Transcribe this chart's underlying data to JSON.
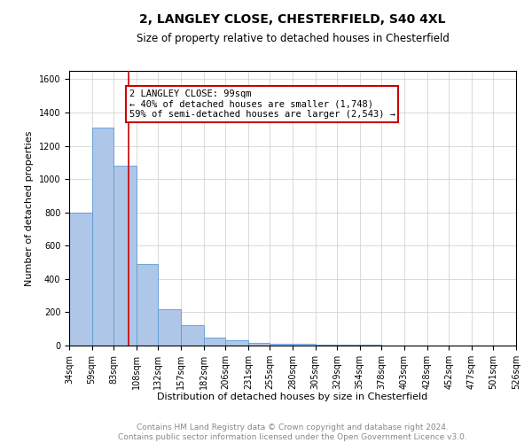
{
  "title": "2, LANGLEY CLOSE, CHESTERFIELD, S40 4XL",
  "subtitle": "Size of property relative to detached houses in Chesterfield",
  "xlabel": "Distribution of detached houses by size in Chesterfield",
  "ylabel": "Number of detached properties",
  "footer_line1": "Contains HM Land Registry data © Crown copyright and database right 2024.",
  "footer_line2": "Contains public sector information licensed under the Open Government Licence v3.0.",
  "property_size": 99,
  "annotation_line1": "2 LANGLEY CLOSE: 99sqm",
  "annotation_line2": "← 40% of detached houses are smaller (1,748)",
  "annotation_line3": "59% of semi-detached houses are larger (2,543) →",
  "bar_edges": [
    34,
    59,
    83,
    108,
    132,
    157,
    182,
    206,
    231,
    255,
    280,
    305,
    329,
    354,
    378,
    403,
    428,
    452,
    477,
    501,
    526
  ],
  "bar_heights": [
    800,
    1310,
    1080,
    490,
    220,
    125,
    50,
    30,
    15,
    10,
    8,
    5,
    4,
    3,
    2,
    2,
    1,
    1,
    1,
    1
  ],
  "bar_color": "#aec6e8",
  "bar_edge_color": "#5b9bd5",
  "redline_color": "#cc0000",
  "annotation_box_color": "#cc0000",
  "ylim": [
    0,
    1650
  ],
  "yticks": [
    0,
    200,
    400,
    600,
    800,
    1000,
    1200,
    1400,
    1600
  ],
  "grid_color": "#cccccc",
  "background_color": "#ffffff",
  "title_fontsize": 10,
  "subtitle_fontsize": 8.5,
  "axis_label_fontsize": 8,
  "tick_fontsize": 7,
  "annotation_fontsize": 7.5,
  "footer_fontsize": 6.5
}
